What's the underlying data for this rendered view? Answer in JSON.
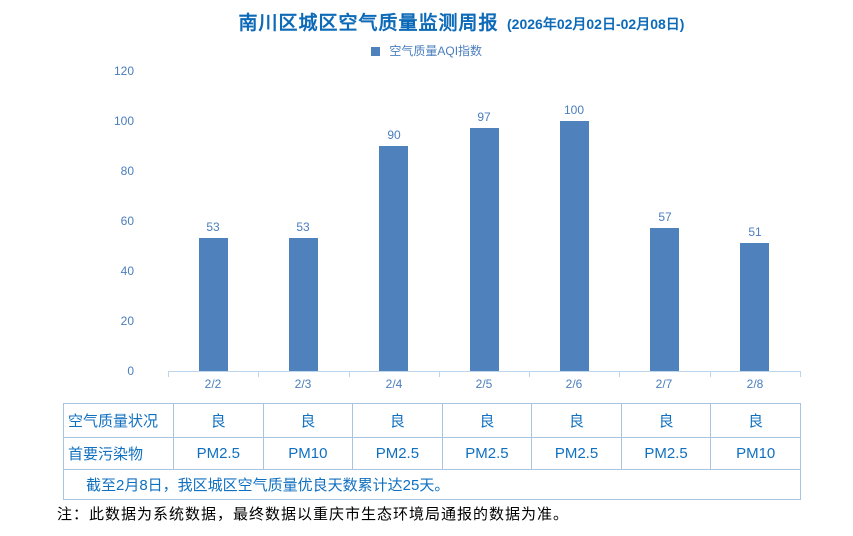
{
  "header": {
    "title": "南川区城区空气质量监测周报",
    "date_range": "(2026年02月02日-02月08日)"
  },
  "legend": {
    "label": "空气质量AQI指数"
  },
  "chart_data": {
    "type": "bar",
    "title": "南川区城区空气质量监测周报 (2026年02月02日-02月08日)",
    "categories": [
      "2/2",
      "2/3",
      "2/4",
      "2/5",
      "2/6",
      "2/7",
      "2/8"
    ],
    "series": [
      {
        "name": "空气质量AQI指数",
        "values": [
          53,
          53,
          90,
          97,
          100,
          57,
          51
        ]
      }
    ],
    "xlabel": "",
    "ylabel": "",
    "ylim": [
      0,
      120
    ],
    "yticks": [
      0,
      20,
      40,
      60,
      80,
      100,
      120
    ],
    "grid": false,
    "legend_position": "top-center",
    "data_labels": true
  },
  "table": {
    "rows": [
      {
        "label": "空气质量状况",
        "values": [
          "良",
          "良",
          "良",
          "良",
          "良",
          "良",
          "良"
        ]
      },
      {
        "label": "首要污染物",
        "values": [
          "PM2.5",
          "PM10",
          "PM2.5",
          "PM2.5",
          "PM2.5",
          "PM2.5",
          "PM10"
        ]
      }
    ],
    "summary": "截至2月8日，我区城区空气质量优良天数累计达25天。"
  },
  "footnote": "注：此数据为系统数据，最终数据以重庆市生态环境局通报的数据为准。",
  "colors": {
    "title": "#0d6ab8",
    "bar": "#4f81bd",
    "axis_label": "#4a7ebc",
    "axis_line": "#bed6ec",
    "table_border": "#a9c4de",
    "table_text": "#1070c0",
    "footnote_text": "#000000"
  }
}
